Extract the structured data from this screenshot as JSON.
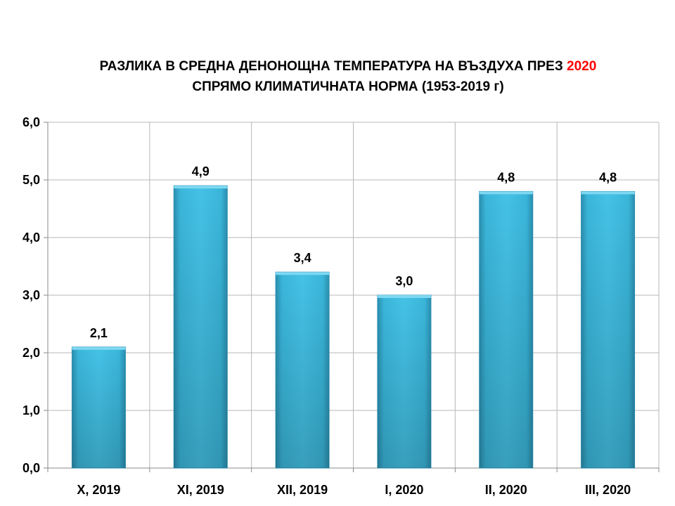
{
  "title": {
    "line1_main": "РАЗЛИКА В СРЕДНА ДЕНОНОЩНА ТЕМПЕРАТУРА НА ВЪЗДУХА ПРЕЗ ",
    "line1_year": "2020",
    "line2": "СПРЯМО КЛИМАТИЧНАТА НОРМА (1953-2019 г)",
    "accent_color": "#ff0000"
  },
  "chart_data": {
    "type": "bar",
    "categories": [
      "X, 2019",
      "XI, 2019",
      "XII, 2019",
      "I, 2020",
      "II, 2020",
      "III, 2020"
    ],
    "values": [
      2.1,
      4.9,
      3.4,
      3.0,
      4.8,
      4.8
    ],
    "value_labels": [
      "2,1",
      "4,9",
      "3,4",
      "3,0",
      "4,8",
      "4,8"
    ],
    "y_ticks": [
      "0,0",
      "1,0",
      "2,0",
      "3,0",
      "4,0",
      "5,0",
      "6,0"
    ],
    "ylim": [
      0,
      6
    ],
    "grid": true,
    "bar_color": "#3ab6da",
    "xlabel": "",
    "ylabel": ""
  }
}
